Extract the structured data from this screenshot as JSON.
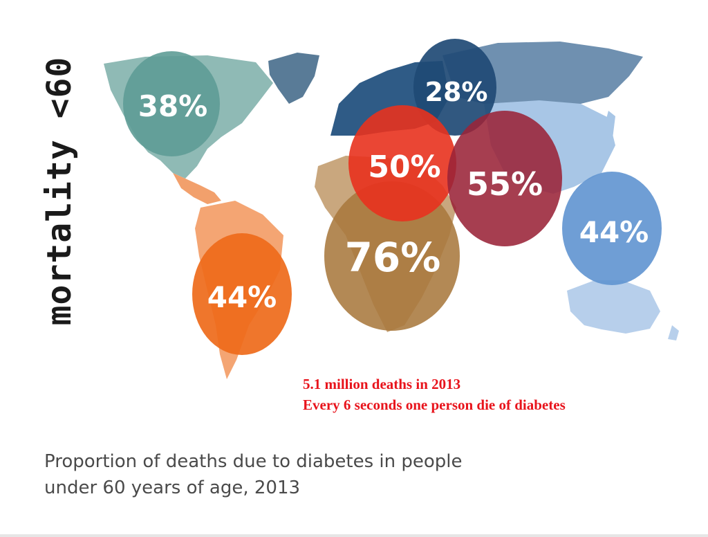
{
  "side_title": "mortality <60",
  "regions": [
    {
      "id": "north-america",
      "value": "38%",
      "color": "#5e9c96"
    },
    {
      "id": "europe",
      "value": "28%",
      "color": "#1f4a75"
    },
    {
      "id": "middle-east-north-africa",
      "value": "50%",
      "color": "#e8321e"
    },
    {
      "id": "south-east-asia",
      "value": "55%",
      "color": "#9a2338"
    },
    {
      "id": "western-pacific",
      "value": "44%",
      "color": "#5f93d0"
    },
    {
      "id": "africa",
      "value": "76%",
      "color": "#a8793e"
    },
    {
      "id": "south-central-america",
      "value": "44%",
      "color": "#ee6a1a"
    }
  ],
  "notes": {
    "line1": "5.1 million deaths in 2013",
    "line2": "Every 6 seconds one person die of diabetes"
  },
  "caption": {
    "line1": "Proportion of deaths due to diabetes in people",
    "line2": "under 60 years of age, 2013"
  }
}
